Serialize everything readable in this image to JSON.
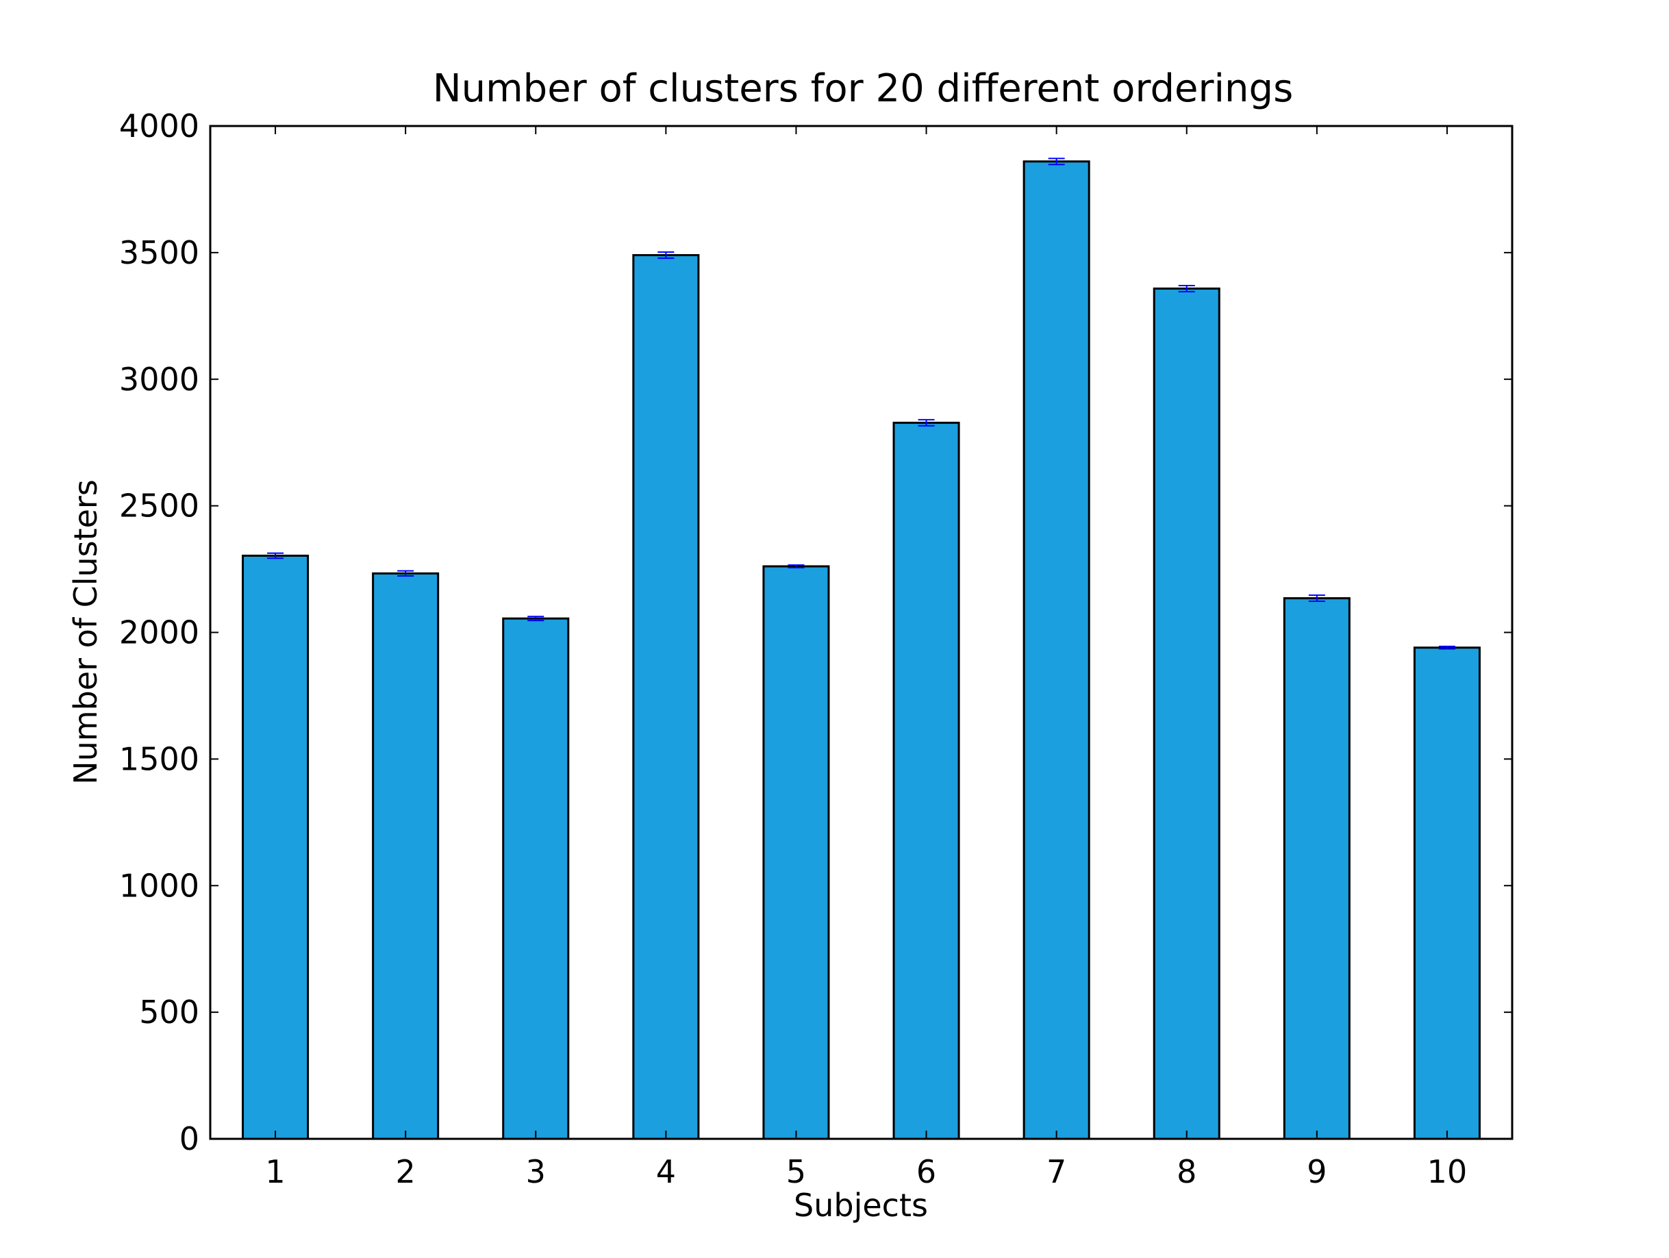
{
  "chart_data": {
    "type": "bar",
    "title": "Number of clusters for 20 different orderings",
    "xlabel": "Subjects",
    "ylabel": "Number of Clusters",
    "categories": [
      "1",
      "2",
      "3",
      "4",
      "5",
      "6",
      "7",
      "8",
      "9",
      "10"
    ],
    "values": [
      2303,
      2233,
      2055,
      3490,
      2261,
      2828,
      3860,
      3358,
      2135,
      1940
    ],
    "errors": [
      10,
      10,
      8,
      12,
      5,
      12,
      12,
      12,
      12,
      5
    ],
    "ylim": [
      0,
      4000
    ],
    "yticks": [
      0,
      500,
      1000,
      1500,
      2000,
      2500,
      3000,
      3500,
      4000
    ],
    "ytick_labels": [
      "0",
      "500",
      "1000",
      "1500",
      "2000",
      "2500",
      "3000",
      "3500",
      "4000"
    ],
    "grid": false,
    "colors": {
      "bar": "#1b9fde",
      "bar_edge": "#000000",
      "errorbar": "#0000ff"
    }
  }
}
